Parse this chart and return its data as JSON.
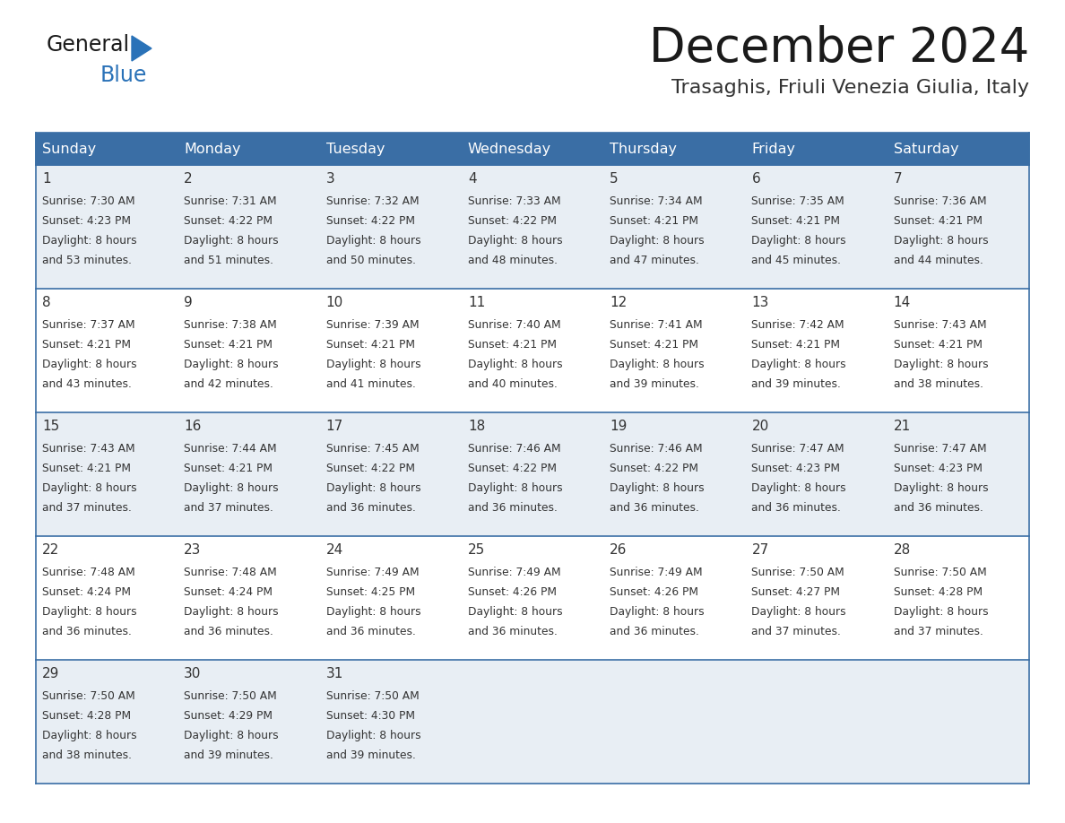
{
  "title": "December 2024",
  "subtitle": "Trasaghis, Friuli Venezia Giulia, Italy",
  "header_bg_color": "#3a6ea5",
  "header_text_color": "#ffffff",
  "row_bg_even": "#e8eef4",
  "row_bg_odd": "#ffffff",
  "day_number_color": "#333333",
  "cell_text_color": "#333333",
  "header_days": [
    "Sunday",
    "Monday",
    "Tuesday",
    "Wednesday",
    "Thursday",
    "Friday",
    "Saturday"
  ],
  "title_color": "#1a1a1a",
  "subtitle_color": "#333333",
  "border_color": "#3a6ea5",
  "logo_general_color": "#1a1a1a",
  "logo_blue_color": "#2a72b8",
  "logo_triangle_color": "#2a72b8",
  "weeks": [
    [
      {
        "day": 1,
        "sunrise": "7:30 AM",
        "sunset": "4:23 PM",
        "daylight": "8 hours and 53 minutes."
      },
      {
        "day": 2,
        "sunrise": "7:31 AM",
        "sunset": "4:22 PM",
        "daylight": "8 hours and 51 minutes."
      },
      {
        "day": 3,
        "sunrise": "7:32 AM",
        "sunset": "4:22 PM",
        "daylight": "8 hours and 50 minutes."
      },
      {
        "day": 4,
        "sunrise": "7:33 AM",
        "sunset": "4:22 PM",
        "daylight": "8 hours and 48 minutes."
      },
      {
        "day": 5,
        "sunrise": "7:34 AM",
        "sunset": "4:21 PM",
        "daylight": "8 hours and 47 minutes."
      },
      {
        "day": 6,
        "sunrise": "7:35 AM",
        "sunset": "4:21 PM",
        "daylight": "8 hours and 45 minutes."
      },
      {
        "day": 7,
        "sunrise": "7:36 AM",
        "sunset": "4:21 PM",
        "daylight": "8 hours and 44 minutes."
      }
    ],
    [
      {
        "day": 8,
        "sunrise": "7:37 AM",
        "sunset": "4:21 PM",
        "daylight": "8 hours and 43 minutes."
      },
      {
        "day": 9,
        "sunrise": "7:38 AM",
        "sunset": "4:21 PM",
        "daylight": "8 hours and 42 minutes."
      },
      {
        "day": 10,
        "sunrise": "7:39 AM",
        "sunset": "4:21 PM",
        "daylight": "8 hours and 41 minutes."
      },
      {
        "day": 11,
        "sunrise": "7:40 AM",
        "sunset": "4:21 PM",
        "daylight": "8 hours and 40 minutes."
      },
      {
        "day": 12,
        "sunrise": "7:41 AM",
        "sunset": "4:21 PM",
        "daylight": "8 hours and 39 minutes."
      },
      {
        "day": 13,
        "sunrise": "7:42 AM",
        "sunset": "4:21 PM",
        "daylight": "8 hours and 39 minutes."
      },
      {
        "day": 14,
        "sunrise": "7:43 AM",
        "sunset": "4:21 PM",
        "daylight": "8 hours and 38 minutes."
      }
    ],
    [
      {
        "day": 15,
        "sunrise": "7:43 AM",
        "sunset": "4:21 PM",
        "daylight": "8 hours and 37 minutes."
      },
      {
        "day": 16,
        "sunrise": "7:44 AM",
        "sunset": "4:21 PM",
        "daylight": "8 hours and 37 minutes."
      },
      {
        "day": 17,
        "sunrise": "7:45 AM",
        "sunset": "4:22 PM",
        "daylight": "8 hours and 36 minutes."
      },
      {
        "day": 18,
        "sunrise": "7:46 AM",
        "sunset": "4:22 PM",
        "daylight": "8 hours and 36 minutes."
      },
      {
        "day": 19,
        "sunrise": "7:46 AM",
        "sunset": "4:22 PM",
        "daylight": "8 hours and 36 minutes."
      },
      {
        "day": 20,
        "sunrise": "7:47 AM",
        "sunset": "4:23 PM",
        "daylight": "8 hours and 36 minutes."
      },
      {
        "day": 21,
        "sunrise": "7:47 AM",
        "sunset": "4:23 PM",
        "daylight": "8 hours and 36 minutes."
      }
    ],
    [
      {
        "day": 22,
        "sunrise": "7:48 AM",
        "sunset": "4:24 PM",
        "daylight": "8 hours and 36 minutes."
      },
      {
        "day": 23,
        "sunrise": "7:48 AM",
        "sunset": "4:24 PM",
        "daylight": "8 hours and 36 minutes."
      },
      {
        "day": 24,
        "sunrise": "7:49 AM",
        "sunset": "4:25 PM",
        "daylight": "8 hours and 36 minutes."
      },
      {
        "day": 25,
        "sunrise": "7:49 AM",
        "sunset": "4:26 PM",
        "daylight": "8 hours and 36 minutes."
      },
      {
        "day": 26,
        "sunrise": "7:49 AM",
        "sunset": "4:26 PM",
        "daylight": "8 hours and 36 minutes."
      },
      {
        "day": 27,
        "sunrise": "7:50 AM",
        "sunset": "4:27 PM",
        "daylight": "8 hours and 37 minutes."
      },
      {
        "day": 28,
        "sunrise": "7:50 AM",
        "sunset": "4:28 PM",
        "daylight": "8 hours and 37 minutes."
      }
    ],
    [
      {
        "day": 29,
        "sunrise": "7:50 AM",
        "sunset": "4:28 PM",
        "daylight": "8 hours and 38 minutes."
      },
      {
        "day": 30,
        "sunrise": "7:50 AM",
        "sunset": "4:29 PM",
        "daylight": "8 hours and 39 minutes."
      },
      {
        "day": 31,
        "sunrise": "7:50 AM",
        "sunset": "4:30 PM",
        "daylight": "8 hours and 39 minutes."
      },
      null,
      null,
      null,
      null
    ]
  ]
}
